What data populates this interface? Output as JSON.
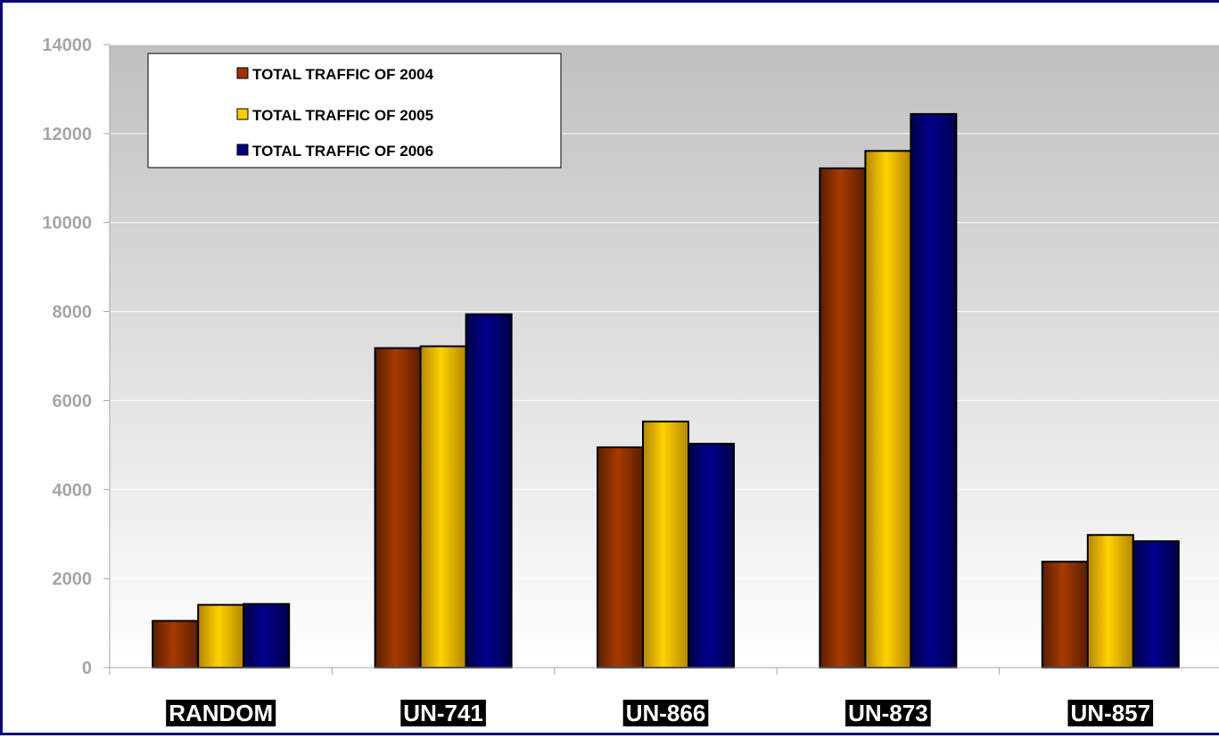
{
  "chart_data": {
    "type": "bar",
    "categories": [
      "RANDOM",
      "UN-741",
      "UN-866",
      "UN-873",
      "UN-857"
    ],
    "series": [
      {
        "name": "TOTAL TRAFFIC OF 2004",
        "color": "#993300",
        "values": [
          1050,
          7180,
          4950,
          11220,
          2380
        ]
      },
      {
        "name": "TOTAL TRAFFIC OF 2005",
        "color": "#ffcc00",
        "values": [
          1410,
          7220,
          5530,
          11610,
          2980
        ]
      },
      {
        "name": "TOTAL TRAFFIC OF 2006",
        "color": "#000080",
        "values": [
          1430,
          7940,
          5030,
          12440,
          2840
        ]
      }
    ],
    "yticks": [
      "0",
      "2000",
      "4000",
      "6000",
      "8000",
      "10000",
      "12000",
      "14000"
    ],
    "ylim": [
      0,
      14000
    ],
    "xlabel": "",
    "ylabel": "",
    "title": "",
    "grid": true,
    "legend_position": "top-left",
    "plot_background": "gray-to-white gradient",
    "category_label_style": "white text on black"
  }
}
